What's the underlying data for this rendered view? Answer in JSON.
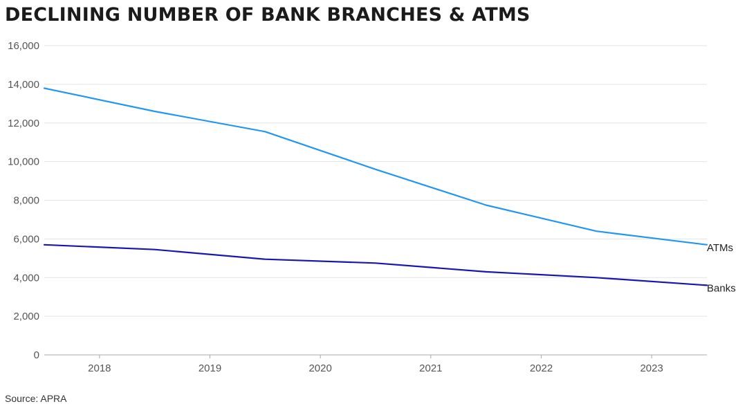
{
  "title": "DECLINING NUMBER OF BANK BRANCHES & ATMS",
  "source": "Source: APRA",
  "colors": {
    "atms": "#2196f3",
    "banks": "#1616b0",
    "grid": "#e3e3e3",
    "axis": "#aaaaaa"
  },
  "chart_data": {
    "type": "line",
    "title": "DECLINING NUMBER OF BANK BRANCHES & ATMS",
    "xlabel": "",
    "ylabel": "",
    "x": [
      2017.5,
      2018.5,
      2019.5,
      2020.5,
      2021.5,
      2022.5,
      2023.5
    ],
    "xlim": [
      2017.5,
      2023.5
    ],
    "xticks": [
      2018,
      2019,
      2020,
      2021,
      2022,
      2023
    ],
    "ylim": [
      0,
      16000
    ],
    "yticks": [
      0,
      2000,
      4000,
      6000,
      8000,
      10000,
      12000,
      14000,
      16000
    ],
    "ytick_labels": [
      "0",
      "2,000",
      "4,000",
      "6,000",
      "8,000",
      "10,000",
      "12,000",
      "14,000",
      "16,000"
    ],
    "grid": true,
    "legend": "direct labels at right end of lines",
    "series": [
      {
        "name": "ATMs",
        "values": [
          13800,
          12600,
          11550,
          9600,
          7750,
          6400,
          5700
        ]
      },
      {
        "name": "Banks",
        "values": [
          5700,
          5450,
          4950,
          4750,
          4300,
          4000,
          3600
        ]
      }
    ]
  }
}
